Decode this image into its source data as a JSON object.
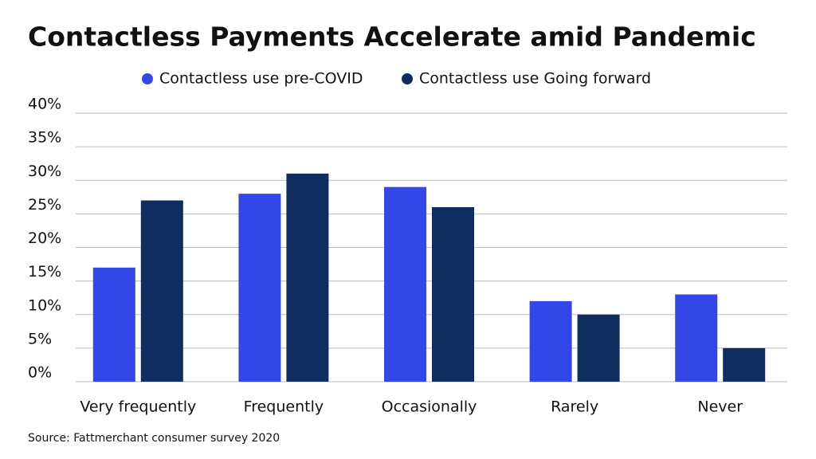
{
  "chart_data": {
    "type": "bar",
    "title": "Contactless Payments Accelerate amid Pandemic",
    "source": "Source: Fattmerchant consumer survey 2020",
    "categories": [
      "Very frequently",
      "Frequently",
      "Occasionally",
      "Rarely",
      "Never"
    ],
    "series": [
      {
        "name": "Contactless use pre-COVID",
        "color": "#3347e8",
        "values": [
          17,
          28,
          29,
          12,
          13
        ]
      },
      {
        "name": "Contactless use Going forward",
        "color": "#0f2d5e",
        "values": [
          27,
          31,
          26,
          10,
          5
        ]
      }
    ],
    "ylim": [
      0,
      40
    ],
    "yticks": [
      {
        "value": 0,
        "label": "0%"
      },
      {
        "value": 5,
        "label": "5%"
      },
      {
        "value": 10,
        "label": "10%"
      },
      {
        "value": 15,
        "label": "15%"
      },
      {
        "value": 20,
        "label": "20%"
      },
      {
        "value": 25,
        "label": "25%"
      },
      {
        "value": 30,
        "label": "30%"
      },
      {
        "value": 35,
        "label": "35%"
      },
      {
        "value": 40,
        "label": "40%"
      }
    ],
    "grid": true,
    "legend": "top"
  }
}
